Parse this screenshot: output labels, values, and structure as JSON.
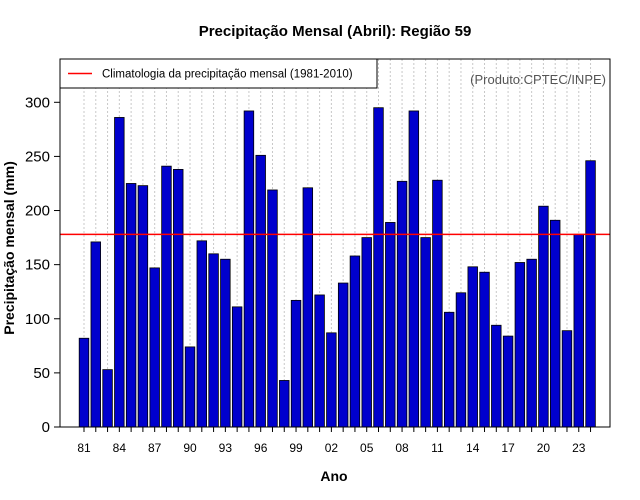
{
  "chart_data": {
    "type": "bar",
    "title": "Precipitação Mensal (Abril): Região 59",
    "xlabel": "Ano",
    "ylabel": "Precipitação mensal (mm)",
    "source": "(Produto:CPTEC/INPE)",
    "legend": {
      "label": "Climatologia da precipitação mensal (1981-2010)",
      "placement": "top-left"
    },
    "climatology": 178,
    "ylim": [
      0,
      340
    ],
    "yticks": [
      0,
      50,
      100,
      150,
      200,
      250,
      300
    ],
    "years": [
      1981,
      1982,
      1983,
      1984,
      1985,
      1986,
      1987,
      1988,
      1989,
      1990,
      1991,
      1992,
      1993,
      1994,
      1995,
      1996,
      1997,
      1998,
      1999,
      2000,
      2001,
      2002,
      2003,
      2004,
      2005,
      2006,
      2007,
      2008,
      2009,
      2010,
      2011,
      2012,
      2013,
      2014,
      2015,
      2016,
      2017,
      2018,
      2019,
      2020,
      2021,
      2022,
      2023,
      2024
    ],
    "values": [
      82,
      171,
      53,
      286,
      225,
      223,
      147,
      241,
      238,
      74,
      172,
      160,
      155,
      111,
      292,
      251,
      219,
      43,
      117,
      221,
      122,
      87,
      133,
      158,
      175,
      295,
      189,
      227,
      292,
      175,
      228,
      106,
      124,
      148,
      143,
      94,
      84,
      152,
      155,
      204,
      191,
      89,
      178,
      246
    ],
    "xtick_labels": [
      "81",
      "84",
      "87",
      "90",
      "93",
      "96",
      "99",
      "02",
      "05",
      "08",
      "11",
      "14",
      "17",
      "20",
      "23"
    ],
    "colors": {
      "bar": "#0000cd",
      "bar_edge": "#000000",
      "climatology_line": "#ff0000",
      "grid": "#c8c8c8"
    }
  }
}
